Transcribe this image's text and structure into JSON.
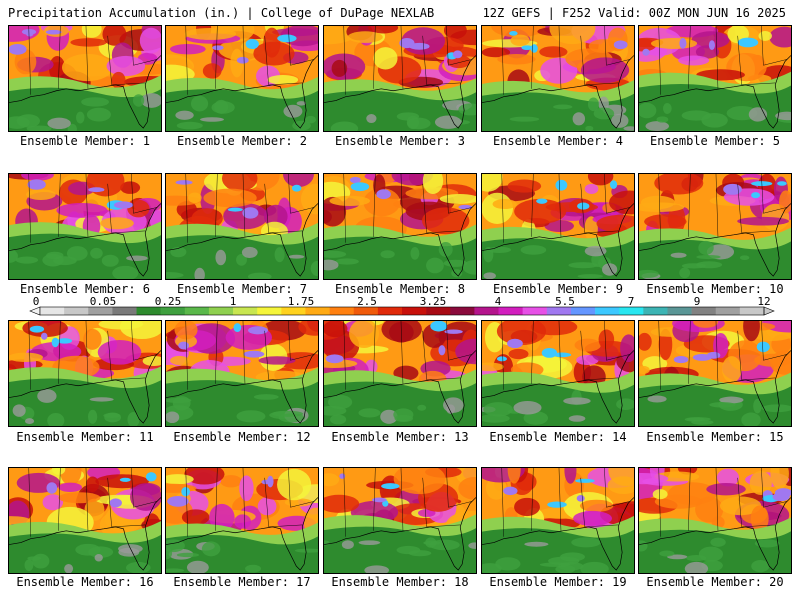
{
  "header": {
    "left": "Precipitation Accumulation (in.) | College of DuPage NEXLAB",
    "right": "12Z GEFS | F252 Valid: 00Z MON JUN 16 2025"
  },
  "members": [
    {
      "label": "Ensemble Member: 1"
    },
    {
      "label": "Ensemble Member: 2"
    },
    {
      "label": "Ensemble Member: 3"
    },
    {
      "label": "Ensemble Member: 4"
    },
    {
      "label": "Ensemble Member: 5"
    },
    {
      "label": "Ensemble Member: 6"
    },
    {
      "label": "Ensemble Member: 7"
    },
    {
      "label": "Ensemble Member: 8"
    },
    {
      "label": "Ensemble Member: 9"
    },
    {
      "label": "Ensemble Member: 10"
    },
    {
      "label": "Ensemble Member: 11"
    },
    {
      "label": "Ensemble Member: 12"
    },
    {
      "label": "Ensemble Member: 13"
    },
    {
      "label": "Ensemble Member: 14"
    },
    {
      "label": "Ensemble Member: 15"
    },
    {
      "label": "Ensemble Member: 16"
    },
    {
      "label": "Ensemble Member: 17"
    },
    {
      "label": "Ensemble Member: 18"
    },
    {
      "label": "Ensemble Member: 19"
    },
    {
      "label": "Ensemble Member: 20"
    }
  ],
  "colorbar": {
    "tick_labels": [
      "0",
      "0.05",
      "0.25",
      "1",
      "1.75",
      "2.5",
      "3.25",
      "4",
      "5.5",
      "7",
      "9",
      "12"
    ],
    "colors": [
      "#e6e6e6",
      "#c8c8c8",
      "#a0a0a0",
      "#7a7a7a",
      "#2e8b2e",
      "#3fa03f",
      "#5ab84a",
      "#8fd04f",
      "#c8e650",
      "#f5f53a",
      "#ffd21e",
      "#ffaa14",
      "#ff8010",
      "#f05a0a",
      "#e02a0a",
      "#c8100a",
      "#a80a14",
      "#8a0a3c",
      "#b4148c",
      "#d21ebe",
      "#e650e6",
      "#a078f0",
      "#6496ff",
      "#3cc8ff",
      "#28e6f0",
      "#3cb4b4",
      "#5a9696",
      "#828282",
      "#a0a0a0",
      "#c8c8c8"
    ]
  }
}
